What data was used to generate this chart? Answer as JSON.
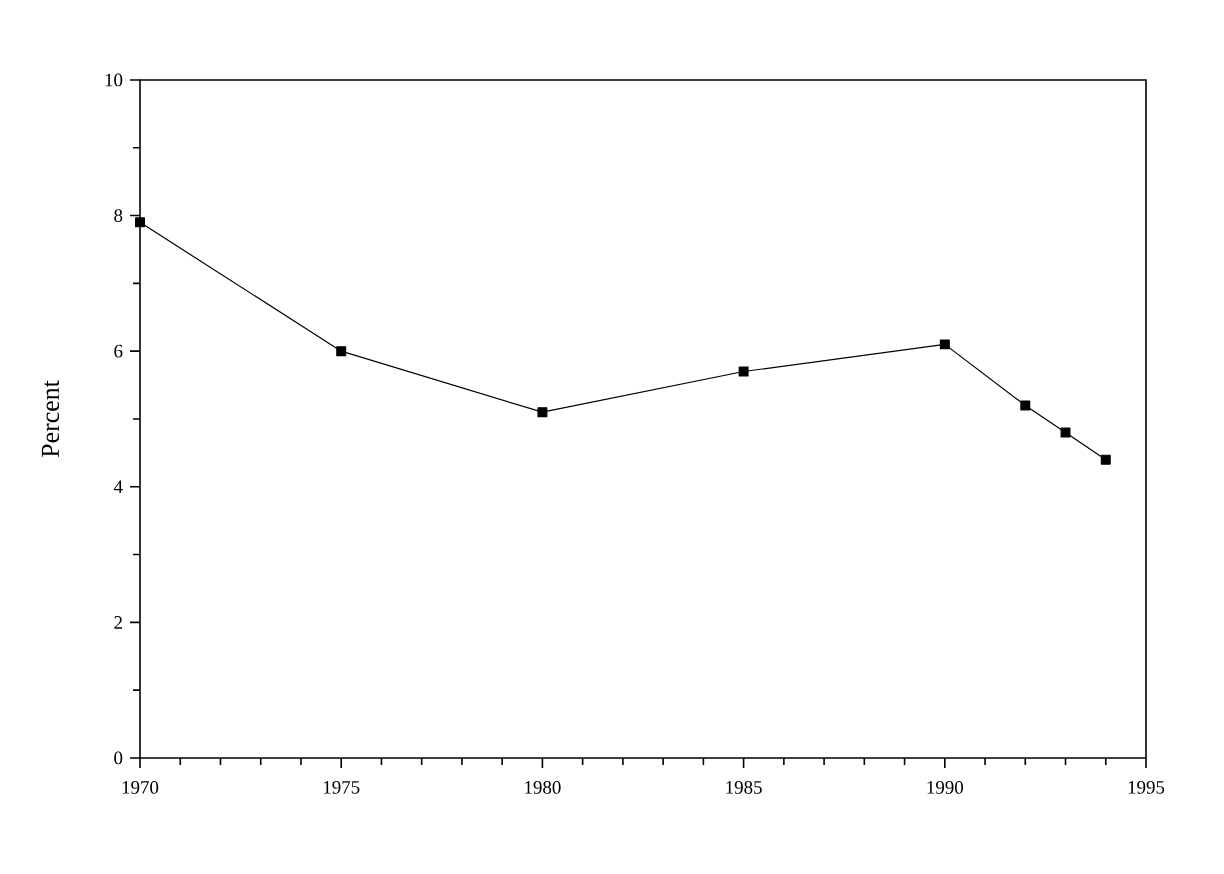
{
  "chart_data": {
    "type": "line",
    "ylabel": "Percent",
    "x": [
      1970,
      1975,
      1980,
      1985,
      1990,
      1992,
      1993,
      1994
    ],
    "values": [
      7.9,
      6.0,
      5.1,
      5.7,
      6.1,
      5.2,
      4.8,
      4.4
    ],
    "color": "#000000",
    "marker": "square",
    "line_style": "solid",
    "xlim": [
      1970,
      1995
    ],
    "ylim": [
      0,
      10
    ],
    "xticks": [
      1970,
      {
        "value": 1971,
        "label": null
      },
      {
        "value": 1972,
        "label": null
      },
      {
        "value": 1973,
        "label": null
      },
      {
        "value": 1974,
        "label": null
      },
      1975,
      {
        "value": 1976,
        "label": null
      },
      {
        "value": 1977,
        "label": null
      },
      {
        "value": 1978,
        "label": null
      },
      {
        "value": 1979,
        "label": null
      },
      1980,
      {
        "value": 1981,
        "label": null
      },
      {
        "value": 1982,
        "label": null
      },
      {
        "value": 1983,
        "label": null
      },
      {
        "value": 1984,
        "label": null
      },
      1985,
      {
        "value": 1986,
        "label": null
      },
      {
        "value": 1987,
        "label": null
      },
      {
        "value": 1988,
        "label": null
      },
      {
        "value": 1989,
        "label": null
      },
      1990,
      {
        "value": 1991,
        "label": null
      },
      {
        "value": 1992,
        "label": null
      },
      {
        "value": 1993,
        "label": null
      },
      {
        "value": 1994,
        "label": null
      },
      1995
    ],
    "yticks": [
      0,
      {
        "value": 1,
        "label": null
      },
      2,
      {
        "value": 3,
        "label": null
      },
      4,
      {
        "value": 5,
        "label": null
      },
      6,
      {
        "value": 7,
        "label": null
      },
      8,
      {
        "value": 9,
        "label": null
      },
      10
    ]
  }
}
